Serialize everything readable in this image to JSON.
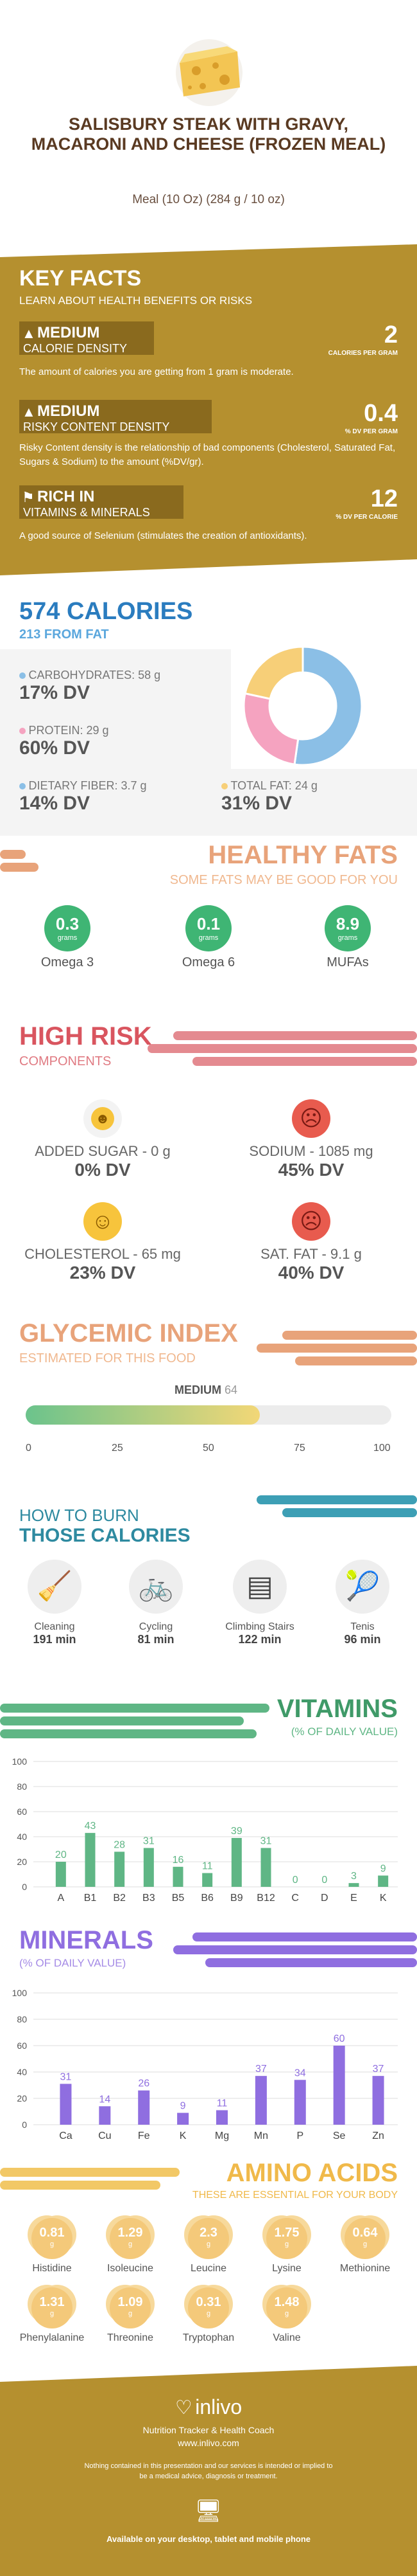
{
  "header": {
    "title": "SALISBURY STEAK WITH GRAVY, MACARONI AND CHEESE (FROZEN MEAL)",
    "subtitle": "Meal (10 Oz) (284 g / 10 oz)"
  },
  "key_facts": {
    "title": "KEY FACTS",
    "subtitle": "LEARN ABOUT HEALTH BENEFITS OR RISKS",
    "items": [
      {
        "level": "MEDIUM",
        "label": "CALORIE DENSITY",
        "value": "2",
        "unit": "CALORIES PER GRAM",
        "desc": "The amount of calories you are getting from 1 gram is moderate."
      },
      {
        "level": "MEDIUM",
        "label": "RISKY CONTENT DENSITY",
        "value": "0.4",
        "unit": "% DV PER GRAM",
        "desc": "Risky Content density is the relationship of bad components (Cholesterol, Saturated Fat, Sugars & Sodium) to the amount (%DV/gr)."
      },
      {
        "level": "RICH IN",
        "label": "VITAMINS & MINERALS",
        "value": "12",
        "unit": "% DV PER CALORIE",
        "desc": "A good source of Selenium (stimulates the creation of antioxidants)."
      }
    ]
  },
  "calories": {
    "title": "574 CALORIES",
    "from_fat": "213 FROM FAT",
    "macros": [
      {
        "label": "CARBOHYDRATES: 58 g",
        "dv": "17% DV",
        "color": "#8bbfe6"
      },
      {
        "label": "PROTEIN: 29 g",
        "dv": "60% DV",
        "color": "#f5a3c0"
      },
      {
        "label": "DIETARY FIBER: 3.7 g",
        "dv": "14% DV",
        "color": "#8bbfe6"
      },
      {
        "label": "TOTAL FAT: 24 g",
        "dv": "31% DV",
        "color": "#f7cf78"
      }
    ],
    "donut": [
      {
        "name": "carbs",
        "value": 58,
        "color": "#8bbfe6"
      },
      {
        "name": "protein",
        "value": 29,
        "color": "#f5a3c0"
      },
      {
        "name": "fat",
        "value": 24,
        "color": "#f7cf78"
      }
    ]
  },
  "healthy_fats": {
    "title": "HEALTHY FATS",
    "subtitle": "SOME FATS MAY BE GOOD FOR YOU",
    "items": [
      {
        "value": "0.3",
        "unit": "grams",
        "label": "Omega 3"
      },
      {
        "value": "0.1",
        "unit": "grams",
        "label": "Omega 6"
      },
      {
        "value": "8.9",
        "unit": "grams",
        "label": "MUFAs"
      }
    ]
  },
  "high_risk": {
    "title": "HIGH RISK",
    "subtitle": "COMPONENTS",
    "items": [
      {
        "label": "ADDED SUGAR - 0 g",
        "dv": "0% DV",
        "face": "grin"
      },
      {
        "label": "SODIUM - 1085 mg",
        "dv": "45% DV",
        "face": "sad"
      },
      {
        "label": "CHOLESTEROL - 65 mg",
        "dv": "23% DV",
        "face": "smile"
      },
      {
        "label": "SAT. FAT - 9.1 g",
        "dv": "40% DV",
        "face": "sad"
      }
    ]
  },
  "glycemic": {
    "title": "GLYCEMIC INDEX",
    "subtitle": "ESTIMATED FOR THIS FOOD",
    "level": "MEDIUM",
    "value": "64",
    "value_num": 64,
    "ticks": [
      "0",
      "25",
      "50",
      "75",
      "100"
    ]
  },
  "burn": {
    "title1": "HOW TO BURN",
    "title2": "THOSE CALORIES",
    "items": [
      {
        "label": "Cleaning",
        "time": "191 min"
      },
      {
        "label": "Cycling",
        "time": "81 min"
      },
      {
        "label": "Climbing Stairs",
        "time": "122 min"
      },
      {
        "label": "Tenis",
        "time": "96 min"
      }
    ]
  },
  "vitamins": {
    "title": "VITAMINS",
    "subtitle": "(% OF DAILY VALUE)",
    "yticks": [
      "0",
      "20",
      "40",
      "60",
      "80",
      "100"
    ],
    "categories": [
      "A",
      "B1",
      "B2",
      "B3",
      "B5",
      "B6",
      "B9",
      "B12",
      "C",
      "D",
      "E",
      "K"
    ],
    "values": [
      20,
      43,
      28,
      31,
      16,
      11,
      39,
      31,
      0,
      0,
      3,
      9
    ],
    "labels": [
      "20",
      "43",
      "28",
      "31",
      "16",
      "11",
      "39",
      "31",
      "0",
      "0",
      "3",
      "9"
    ],
    "color": "#5fb685"
  },
  "minerals": {
    "title": "MINERALS",
    "subtitle": "(% OF DAILY VALUE)",
    "yticks": [
      "0",
      "20",
      "40",
      "60",
      "80",
      "100"
    ],
    "categories": [
      "Ca",
      "Cu",
      "Fe",
      "K",
      "Mg",
      "Mn",
      "P",
      "Se",
      "Zn"
    ],
    "values": [
      31,
      14,
      26,
      9,
      11,
      37,
      34,
      60,
      37
    ],
    "labels": [
      "31",
      "14",
      "26",
      "9",
      "11",
      "37",
      "34",
      "60",
      "37"
    ],
    "color": "#8f6ee0"
  },
  "amino": {
    "title": "AMINO ACIDS",
    "subtitle": "THESE ARE ESSENTIAL FOR YOUR BODY",
    "unit": "g",
    "items": [
      {
        "value": "0.81",
        "label": "Histidine"
      },
      {
        "value": "1.29",
        "label": "Isoleucine"
      },
      {
        "value": "2.3",
        "label": "Leucine"
      },
      {
        "value": "1.75",
        "label": "Lysine"
      },
      {
        "value": "0.64",
        "label": "Methionine"
      },
      {
        "value": "1.31",
        "label": "Phenylalanine"
      },
      {
        "value": "1.09",
        "label": "Threonine"
      },
      {
        "value": "0.31",
        "label": "Tryptophan"
      },
      {
        "value": "1.48",
        "label": "Valine"
      }
    ]
  },
  "footer": {
    "brand": "inlivo",
    "tagline": "Nutrition Tracker & Health Coach",
    "url": "www.inlivo.com",
    "disclaimer": "Nothing contained in this presentation and our services is intended or implied to be a medical advice, diagnosis or treatment.",
    "available": "Available on your desktop, tablet and mobile phone"
  }
}
